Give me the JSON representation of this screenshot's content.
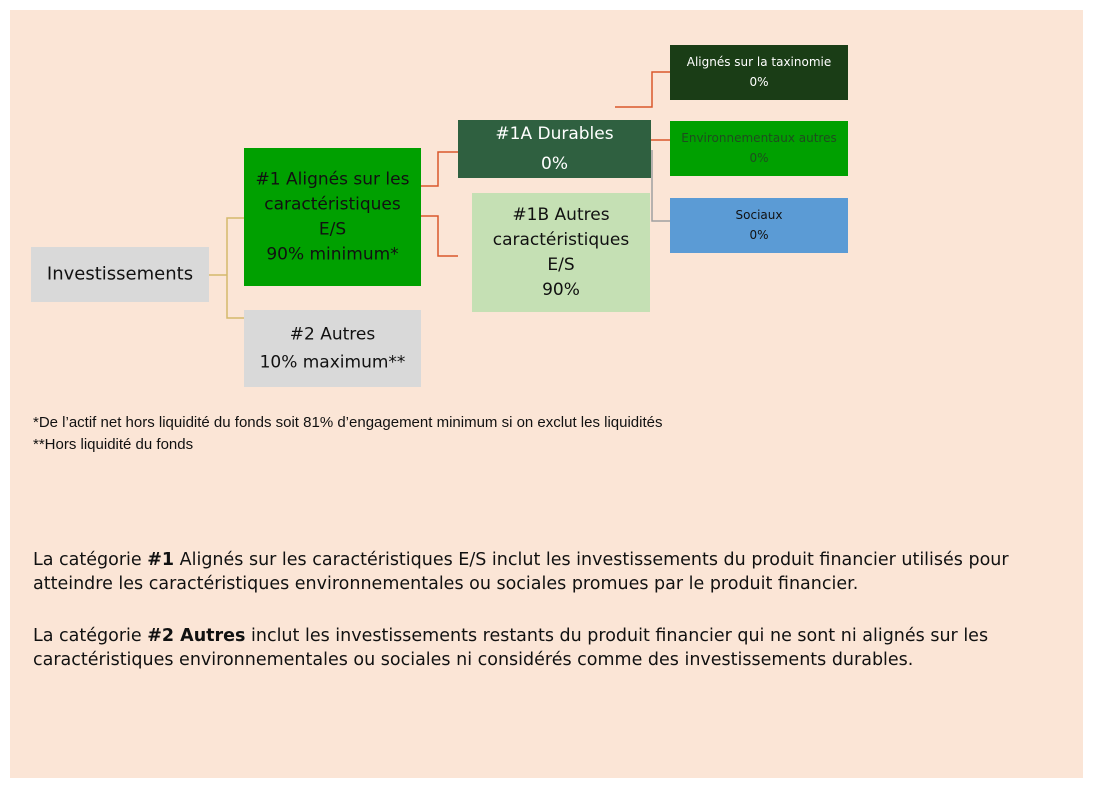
{
  "nodes": [
    {
      "lines": [
        "Investissements"
      ]
    },
    {
      "lines": [
        "#1 Alignés sur les",
        "caractéristiques",
        "E/S",
        "90% minimum*"
      ]
    },
    {
      "lines": [
        "#2 Autres",
        "10% maximum**"
      ]
    },
    {
      "lines": [
        "#1A Durables",
        "0%"
      ]
    },
    {
      "lines": [
        "#1B Autres",
        "caractéristiques",
        "E/S",
        "90%"
      ]
    },
    {
      "lines": [
        "Alignés sur la taxinomie",
        "0%"
      ]
    },
    {
      "lines": [
        "Environnementaux autres",
        "0%"
      ]
    },
    {
      "lines": [
        "Sociaux",
        "0%"
      ]
    }
  ],
  "footnotes": [
    "*De l’actif net hors liquidité du fonds soit 81% d’engagement minimum si on exclut les liquidités",
    "**Hors liquidité du fonds"
  ],
  "paragraphs": [
    [
      {
        "text": "La catégorie ",
        "bold": false
      },
      {
        "text": "#1",
        "bold": true
      },
      {
        "text": " Alignés sur les caractéristiques E/S inclut les investissements du produit financier utilisés pour atteindre les caractéristiques environnementales ou sociales promues par le produit financier.",
        "bold": false
      }
    ],
    [
      {
        "text": "La catégorie ",
        "bold": false
      },
      {
        "text": "#2 Autres",
        "bold": true
      },
      {
        "text": " inclut les investissements restants du produit financier qui ne sont ni alignés sur les caractéristiques environnementales ou sociales ni considérés comme des investissements durables.",
        "bold": false
      }
    ]
  ]
}
